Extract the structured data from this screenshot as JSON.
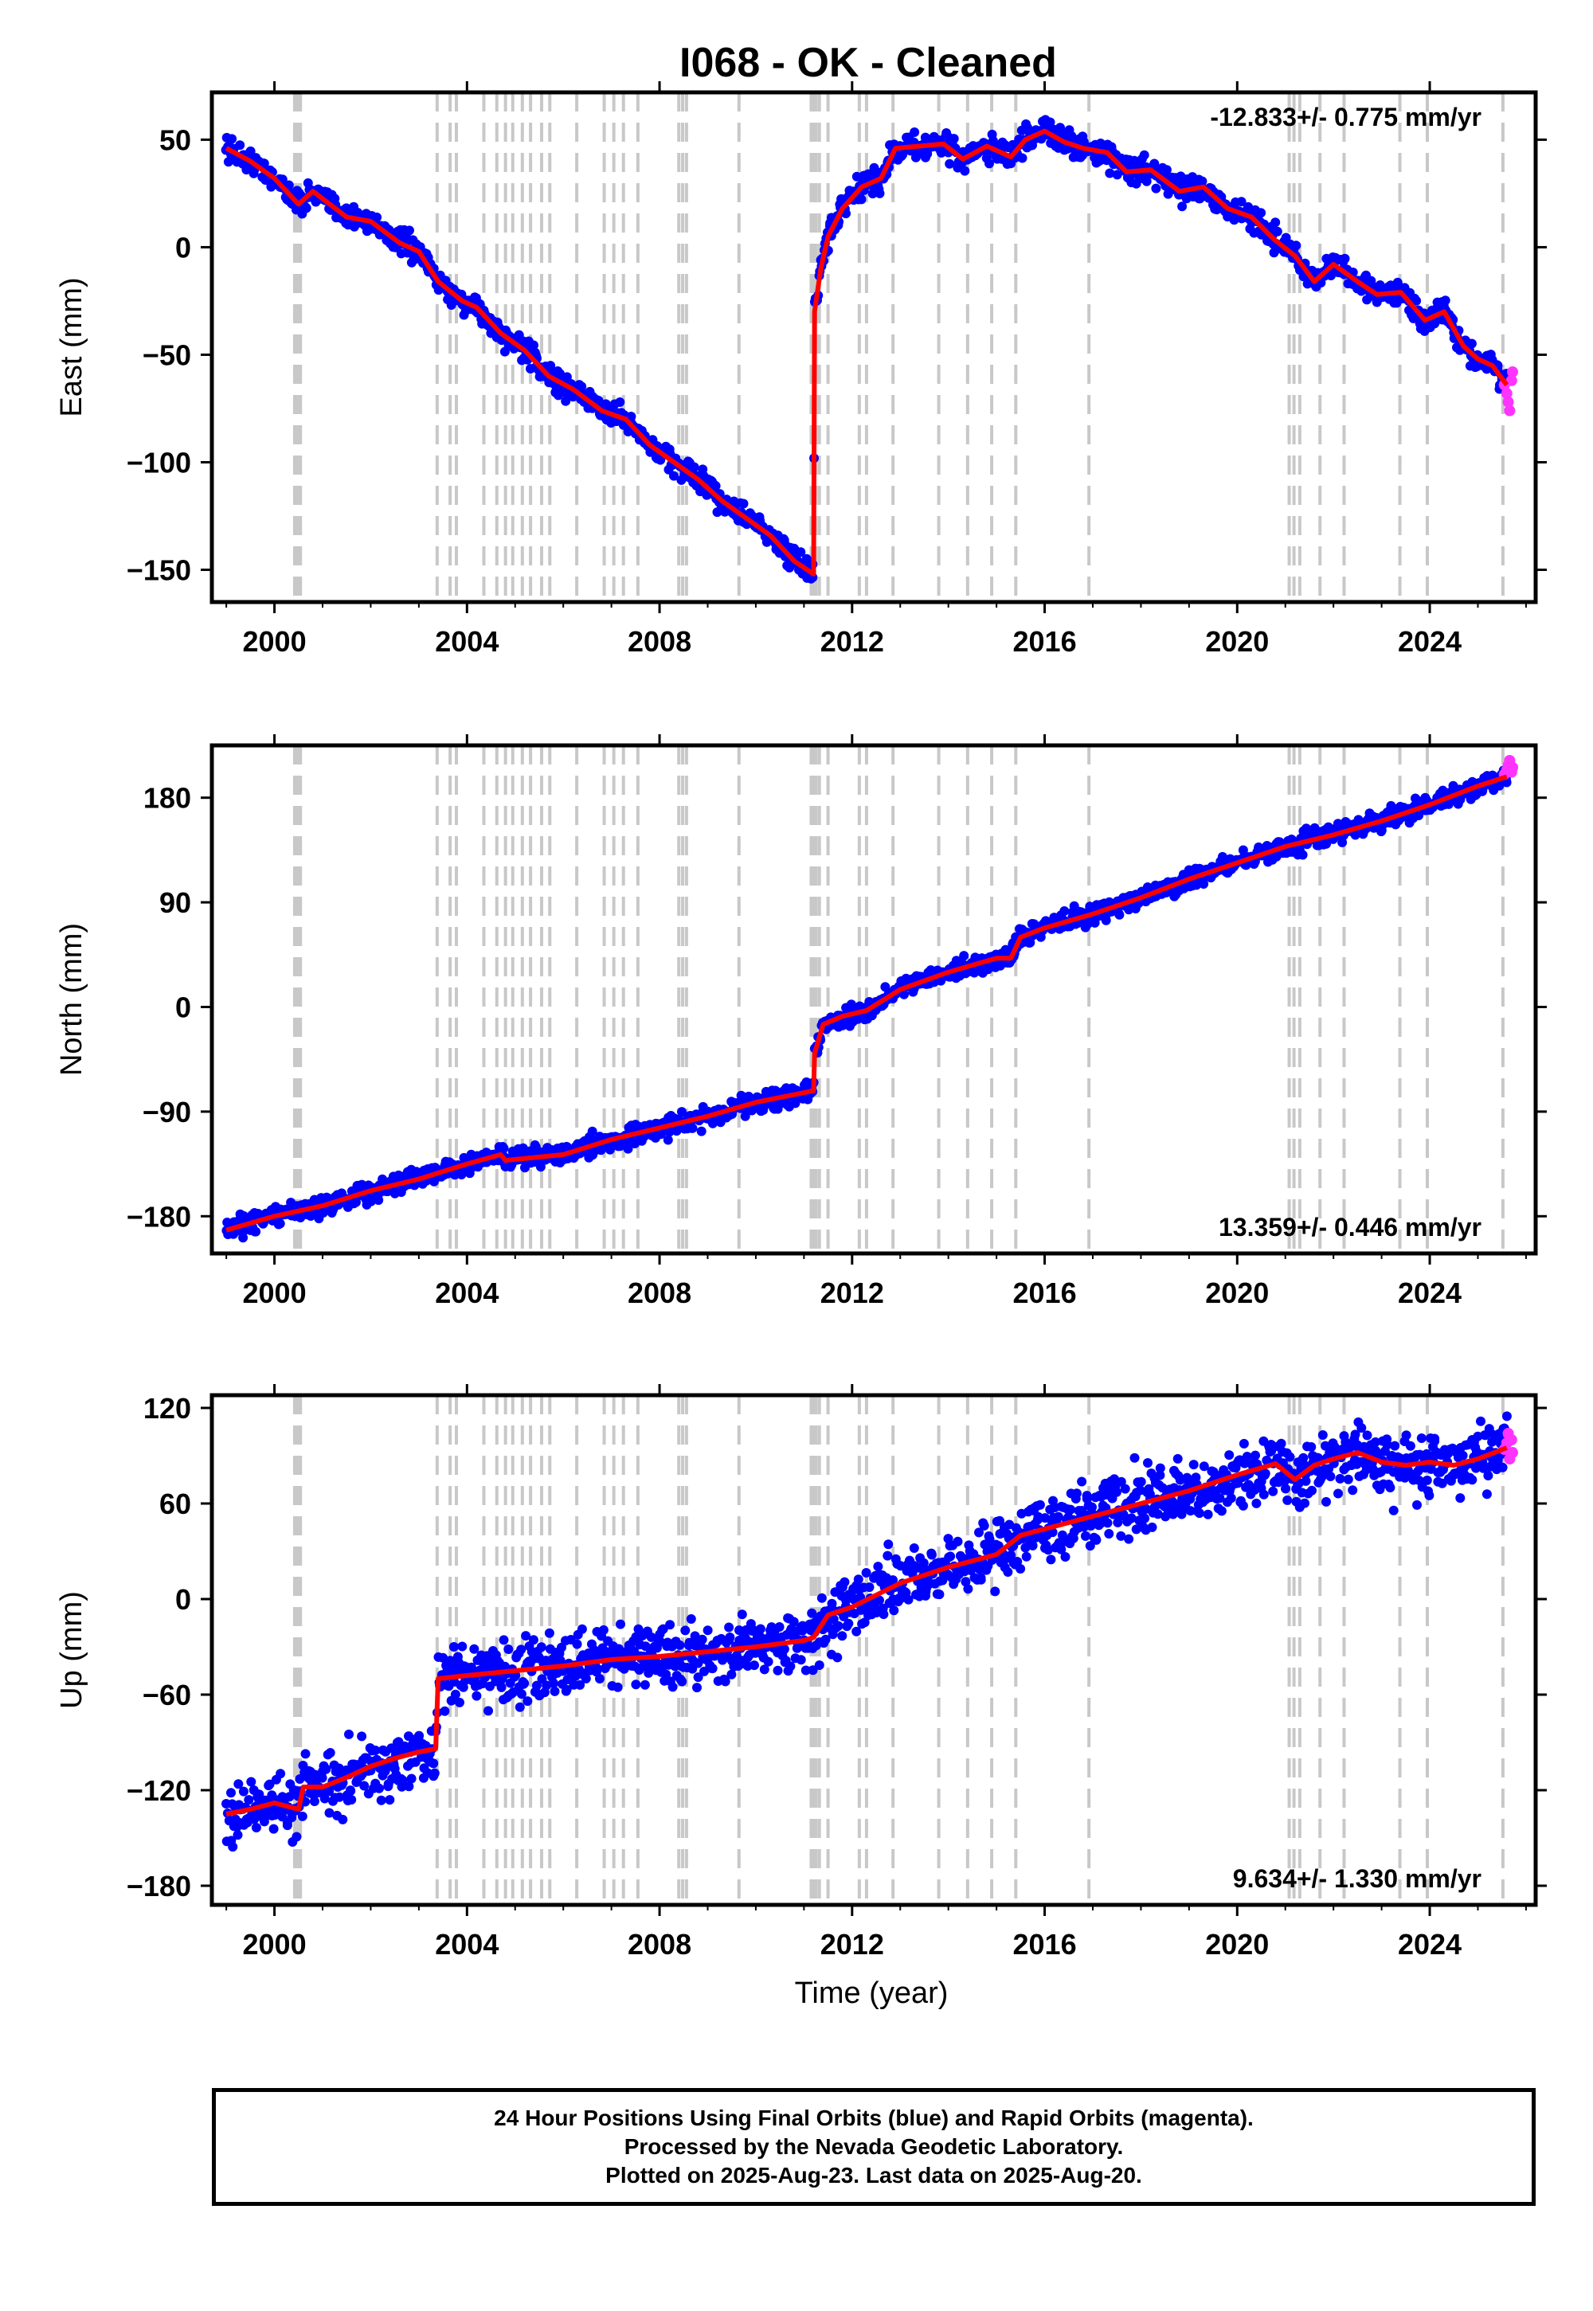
{
  "title": "I068  - OK - Cleaned",
  "xlabel": "Time (year)",
  "footer": {
    "line1": "24 Hour Positions Using Final Orbits (blue) and Rapid Orbits (magenta).",
    "line2": "Processed by the Nevada Geodetic Laboratory.",
    "line3": "Plotted on 2025-Aug-23. Last data on 2025-Aug-20."
  },
  "colors": {
    "final_orbits": "#0000ff",
    "rapid_orbits": "#ff33ff",
    "model": "#ff0000",
    "event_lines": "#c8c8c8",
    "frame": "#000000"
  },
  "chart_data": [
    {
      "type": "scatter",
      "component": "east",
      "ylabel": "East (mm)",
      "rate_label": "-12.833+/- 0.775 mm/yr",
      "xlim": [
        1998.7,
        2026.2
      ],
      "ylim": [
        -165,
        72
      ],
      "xticks": [
        2000,
        2004,
        2008,
        2012,
        2016,
        2020,
        2024
      ],
      "yticks": [
        -150,
        -100,
        -50,
        0,
        50
      ],
      "ytick_labels": [
        "−150",
        "−100",
        "−50",
        "0",
        "50"
      ],
      "scatter_spread": 4,
      "model_knots": [
        [
          1999.0,
          46
        ],
        [
          1999.5,
          40
        ],
        [
          2000.0,
          32
        ],
        [
          2000.5,
          20
        ],
        [
          2000.8,
          26
        ],
        [
          2001.5,
          14
        ],
        [
          2002.0,
          12
        ],
        [
          2002.6,
          2
        ],
        [
          2003.0,
          -2
        ],
        [
          2003.4,
          -16
        ],
        [
          2003.9,
          -25
        ],
        [
          2004.2,
          -28
        ],
        [
          2004.7,
          -40
        ],
        [
          2005.2,
          -48
        ],
        [
          2005.7,
          -60
        ],
        [
          2006.2,
          -66
        ],
        [
          2006.8,
          -76
        ],
        [
          2007.3,
          -80
        ],
        [
          2007.8,
          -92
        ],
        [
          2008.3,
          -100
        ],
        [
          2008.8,
          -108
        ],
        [
          2009.3,
          -118
        ],
        [
          2009.8,
          -126
        ],
        [
          2010.3,
          -134
        ],
        [
          2010.8,
          -146
        ],
        [
          2011.2,
          -152
        ],
        [
          2011.22,
          -30
        ],
        [
          2011.35,
          -10
        ],
        [
          2011.5,
          5
        ],
        [
          2011.8,
          18
        ],
        [
          2012.2,
          28
        ],
        [
          2012.6,
          32
        ],
        [
          2012.9,
          46
        ],
        [
          2013.4,
          47
        ],
        [
          2013.9,
          48
        ],
        [
          2014.3,
          41
        ],
        [
          2014.8,
          47
        ],
        [
          2015.3,
          42
        ],
        [
          2015.6,
          50
        ],
        [
          2016.0,
          54
        ],
        [
          2016.4,
          49
        ],
        [
          2016.8,
          46
        ],
        [
          2017.3,
          44
        ],
        [
          2017.7,
          35
        ],
        [
          2018.2,
          36
        ],
        [
          2018.8,
          26
        ],
        [
          2019.3,
          28
        ],
        [
          2019.8,
          18
        ],
        [
          2020.3,
          14
        ],
        [
          2020.8,
          3
        ],
        [
          2021.2,
          -4
        ],
        [
          2021.6,
          -16
        ],
        [
          2022.0,
          -8
        ],
        [
          2022.5,
          -16
        ],
        [
          2022.9,
          -22
        ],
        [
          2023.4,
          -21
        ],
        [
          2023.9,
          -34
        ],
        [
          2024.3,
          -30
        ],
        [
          2024.7,
          -46
        ],
        [
          2025.0,
          -52
        ],
        [
          2025.3,
          -55
        ],
        [
          2025.6,
          -64
        ]
      ],
      "rapid_tail": [
        [
          2025.55,
          -64
        ],
        [
          2025.6,
          -68
        ],
        [
          2025.63,
          -72
        ],
        [
          2025.66,
          -76
        ],
        [
          2025.7,
          -62
        ],
        [
          2025.72,
          -58
        ]
      ]
    },
    {
      "type": "scatter",
      "component": "north",
      "ylabel": "North (mm)",
      "rate_label": "13.359+/- 0.446 mm/yr",
      "xlim": [
        1998.7,
        2026.2
      ],
      "ylim": [
        -212,
        225
      ],
      "xticks": [
        2000,
        2004,
        2008,
        2012,
        2016,
        2020,
        2024
      ],
      "yticks": [
        -180,
        -90,
        0,
        90,
        180
      ],
      "ytick_labels": [
        "−180",
        "−90",
        "0",
        "90",
        "180"
      ],
      "scatter_spread": 6,
      "model_knots": [
        [
          1999.0,
          -192
        ],
        [
          2000.0,
          -180
        ],
        [
          2001.0,
          -171
        ],
        [
          2002.0,
          -158
        ],
        [
          2003.0,
          -148
        ],
        [
          2004.0,
          -135
        ],
        [
          2004.7,
          -127
        ],
        [
          2004.8,
          -132
        ],
        [
          2006.0,
          -127
        ],
        [
          2007.0,
          -114
        ],
        [
          2008.0,
          -104
        ],
        [
          2009.0,
          -94
        ],
        [
          2010.0,
          -82
        ],
        [
          2011.2,
          -72
        ],
        [
          2011.22,
          -40
        ],
        [
          2011.4,
          -15
        ],
        [
          2011.8,
          -8
        ],
        [
          2012.3,
          -3
        ],
        [
          2013.0,
          15
        ],
        [
          2014.0,
          30
        ],
        [
          2015.0,
          42
        ],
        [
          2015.3,
          42
        ],
        [
          2015.5,
          60
        ],
        [
          2016.0,
          68
        ],
        [
          2017.0,
          80
        ],
        [
          2018.0,
          94
        ],
        [
          2019.0,
          110
        ],
        [
          2020.0,
          124
        ],
        [
          2021.0,
          138
        ],
        [
          2022.0,
          148
        ],
        [
          2023.0,
          160
        ],
        [
          2024.0,
          174
        ],
        [
          2025.0,
          190
        ],
        [
          2025.6,
          198
        ]
      ],
      "rapid_tail": [
        [
          2025.55,
          200
        ],
        [
          2025.6,
          204
        ],
        [
          2025.63,
          208
        ],
        [
          2025.66,
          212
        ],
        [
          2025.7,
          202
        ],
        [
          2025.72,
          206
        ]
      ]
    },
    {
      "type": "scatter",
      "component": "up",
      "ylabel": "Up (mm)",
      "rate_label": "9.634+/- 1.330 mm/yr",
      "xlim": [
        1998.7,
        2026.2
      ],
      "ylim": [
        -192,
        128
      ],
      "xticks": [
        2000,
        2004,
        2008,
        2012,
        2016,
        2020,
        2024
      ],
      "yticks": [
        -180,
        -120,
        -60,
        0,
        60,
        120
      ],
      "ytick_labels": [
        "−180",
        "−120",
        "−60",
        "0",
        "60",
        "120"
      ],
      "scatter_spread": 14,
      "model_knots": [
        [
          1999.0,
          -135
        ],
        [
          1999.5,
          -132
        ],
        [
          2000.0,
          -128
        ],
        [
          2000.5,
          -132
        ],
        [
          2000.6,
          -118
        ],
        [
          2001.0,
          -118
        ],
        [
          2001.5,
          -112
        ],
        [
          2002.0,
          -105
        ],
        [
          2002.5,
          -100
        ],
        [
          2003.0,
          -96
        ],
        [
          2003.35,
          -94
        ],
        [
          2003.4,
          -50
        ],
        [
          2004.0,
          -48
        ],
        [
          2005.0,
          -45
        ],
        [
          2006.0,
          -42
        ],
        [
          2007.0,
          -38
        ],
        [
          2008.0,
          -36
        ],
        [
          2009.0,
          -33
        ],
        [
          2010.0,
          -30
        ],
        [
          2011.0,
          -26
        ],
        [
          2011.2,
          -24
        ],
        [
          2011.5,
          -10
        ],
        [
          2012.0,
          -5
        ],
        [
          2013.0,
          10
        ],
        [
          2014.0,
          20
        ],
        [
          2015.0,
          28
        ],
        [
          2015.5,
          40
        ],
        [
          2016.0,
          44
        ],
        [
          2017.0,
          52
        ],
        [
          2018.0,
          60
        ],
        [
          2019.0,
          68
        ],
        [
          2020.0,
          78
        ],
        [
          2020.8,
          85
        ],
        [
          2021.2,
          75
        ],
        [
          2021.6,
          84
        ],
        [
          2022.0,
          88
        ],
        [
          2022.5,
          92
        ],
        [
          2023.0,
          86
        ],
        [
          2023.5,
          84
        ],
        [
          2024.0,
          86
        ],
        [
          2024.5,
          84
        ],
        [
          2025.0,
          88
        ],
        [
          2025.6,
          95
        ]
      ],
      "rapid_tail": [
        [
          2025.55,
          94
        ],
        [
          2025.6,
          98
        ],
        [
          2025.63,
          104
        ],
        [
          2025.66,
          88
        ],
        [
          2025.7,
          100
        ],
        [
          2025.72,
          92
        ]
      ]
    }
  ],
  "event_lines": [
    2000.42,
    2000.46,
    2000.5,
    2000.54,
    2003.38,
    2003.65,
    2003.78,
    2004.35,
    2004.62,
    2004.8,
    2004.95,
    2005.15,
    2005.32,
    2005.55,
    2005.72,
    2006.28,
    2006.85,
    2007.05,
    2007.25,
    2007.55,
    2008.4,
    2008.48,
    2008.56,
    2009.65,
    2011.15,
    2011.2,
    2011.25,
    2011.32,
    2011.5,
    2012.15,
    2012.3,
    2012.85,
    2013.8,
    2014.4,
    2014.9,
    2015.4,
    2016.92,
    2021.08,
    2021.18,
    2021.3,
    2021.72,
    2022.22,
    2023.38,
    2023.95,
    2025.52
  ]
}
